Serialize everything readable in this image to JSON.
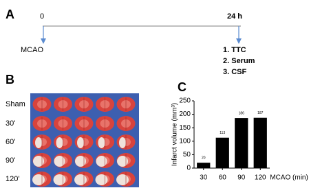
{
  "panel_a": {
    "letter": "A",
    "start": "0",
    "end": "24 h",
    "start_label": "MCAO",
    "outcomes": [
      "1. TTC",
      "2. Serum",
      "3. CSF"
    ]
  },
  "panel_b": {
    "letter": "B",
    "rows": [
      "Sham",
      "30'",
      "60'",
      "90'",
      "120'"
    ]
  },
  "panel_c": {
    "letter": "C"
  },
  "chart_data": {
    "type": "bar",
    "ylabel": "Infarct volume (mm³)",
    "xlabel": "MCAO (min)",
    "categories": [
      "30",
      "60",
      "90",
      "120"
    ],
    "values": [
      20,
      113,
      186,
      187
    ],
    "color": "#000000",
    "ylim": [
      0,
      250
    ],
    "yticks": [
      0,
      50,
      100,
      150,
      200,
      250
    ]
  }
}
